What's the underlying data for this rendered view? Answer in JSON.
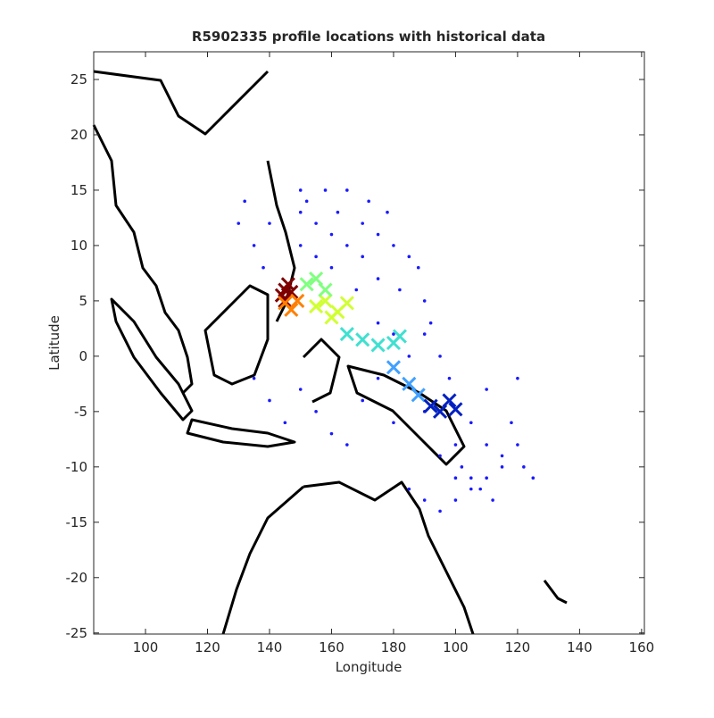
{
  "chart_data": {
    "type": "scatter",
    "title": "R5902335 profile locations with historical data",
    "xlabel": "Longitude",
    "ylabel": "Latitude",
    "xlim": [
      83.3,
      260.9
    ],
    "ylim": [
      -25.1,
      27.5
    ],
    "xticks": [
      100,
      120,
      140,
      160,
      180,
      {
        "value": 200,
        "label": "100"
      },
      {
        "value": 220,
        "label": "120"
      },
      {
        "value": 240,
        "label": "140"
      },
      {
        "value": 260,
        "label": "160"
      }
    ],
    "yticks": [
      -25,
      -20,
      -15,
      -10,
      -5,
      0,
      5,
      10,
      15,
      20,
      25
    ],
    "series": [
      {
        "color": "#1a1aff",
        "marker": "dot",
        "x": [
          130,
          132,
          135,
          138,
          140,
          150,
          150,
          150,
          152,
          155,
          155,
          158,
          160,
          160,
          162,
          165,
          165,
          168,
          170,
          170,
          172,
          175,
          175,
          178,
          180,
          182,
          185,
          188,
          190,
          190,
          192,
          195,
          198,
          200,
          202,
          205,
          205,
          208,
          210,
          210,
          212,
          215,
          218,
          220,
          222,
          225,
          150,
          155,
          160,
          165,
          170,
          175,
          180,
          185,
          190,
          195,
          200,
          205,
          210,
          215,
          220,
          135,
          140,
          145,
          175,
          180,
          185,
          190,
          195,
          200
        ],
        "y": [
          12,
          14,
          10,
          8,
          12,
          15,
          13,
          10,
          14,
          12,
          9,
          15,
          11,
          8,
          13,
          15,
          10,
          6,
          12,
          9,
          14,
          11,
          7,
          13,
          10,
          6,
          9,
          8,
          5,
          2,
          3,
          0,
          -2,
          -8,
          -10,
          -6,
          -11,
          -12,
          -3,
          -8,
          -13,
          -9,
          -6,
          -2,
          -10,
          -11,
          -3,
          -5,
          -7,
          -8,
          -4,
          -2,
          -6,
          -12,
          -13,
          -14,
          -13,
          -12,
          -11,
          -10,
          -8,
          -2,
          -4,
          -6,
          3,
          2,
          0,
          -5,
          -9,
          -11
        ]
      },
      {
        "color": "#800000",
        "marker": "cross",
        "x": [
          144,
          145,
          146,
          147,
          145
        ],
        "y": [
          5.5,
          6,
          6.5,
          5.8,
          5
        ]
      },
      {
        "color": "#ff8000",
        "marker": "cross",
        "x": [
          145,
          147,
          149
        ],
        "y": [
          4.8,
          4.2,
          5
        ]
      },
      {
        "color": "#d0ff30",
        "marker": "cross",
        "x": [
          155,
          158,
          162,
          165,
          160
        ],
        "y": [
          4.5,
          5,
          4,
          4.8,
          3.5
        ]
      },
      {
        "color": "#80ff80",
        "marker": "cross",
        "x": [
          152,
          155,
          158
        ],
        "y": [
          6.5,
          7,
          6
        ]
      },
      {
        "color": "#40e0d0",
        "marker": "cross",
        "x": [
          165,
          170,
          175,
          180,
          182
        ],
        "y": [
          2,
          1.5,
          1,
          1.2,
          1.8
        ]
      },
      {
        "color": "#40a0ff",
        "marker": "cross",
        "x": [
          180,
          185,
          188
        ],
        "y": [
          -1,
          -2.5,
          -3.5
        ]
      },
      {
        "color": "#0020c0",
        "marker": "cross",
        "x": [
          192,
          195,
          198,
          200
        ],
        "y": [
          -4.5,
          -5,
          -4,
          -4.8
        ]
      }
    ]
  }
}
